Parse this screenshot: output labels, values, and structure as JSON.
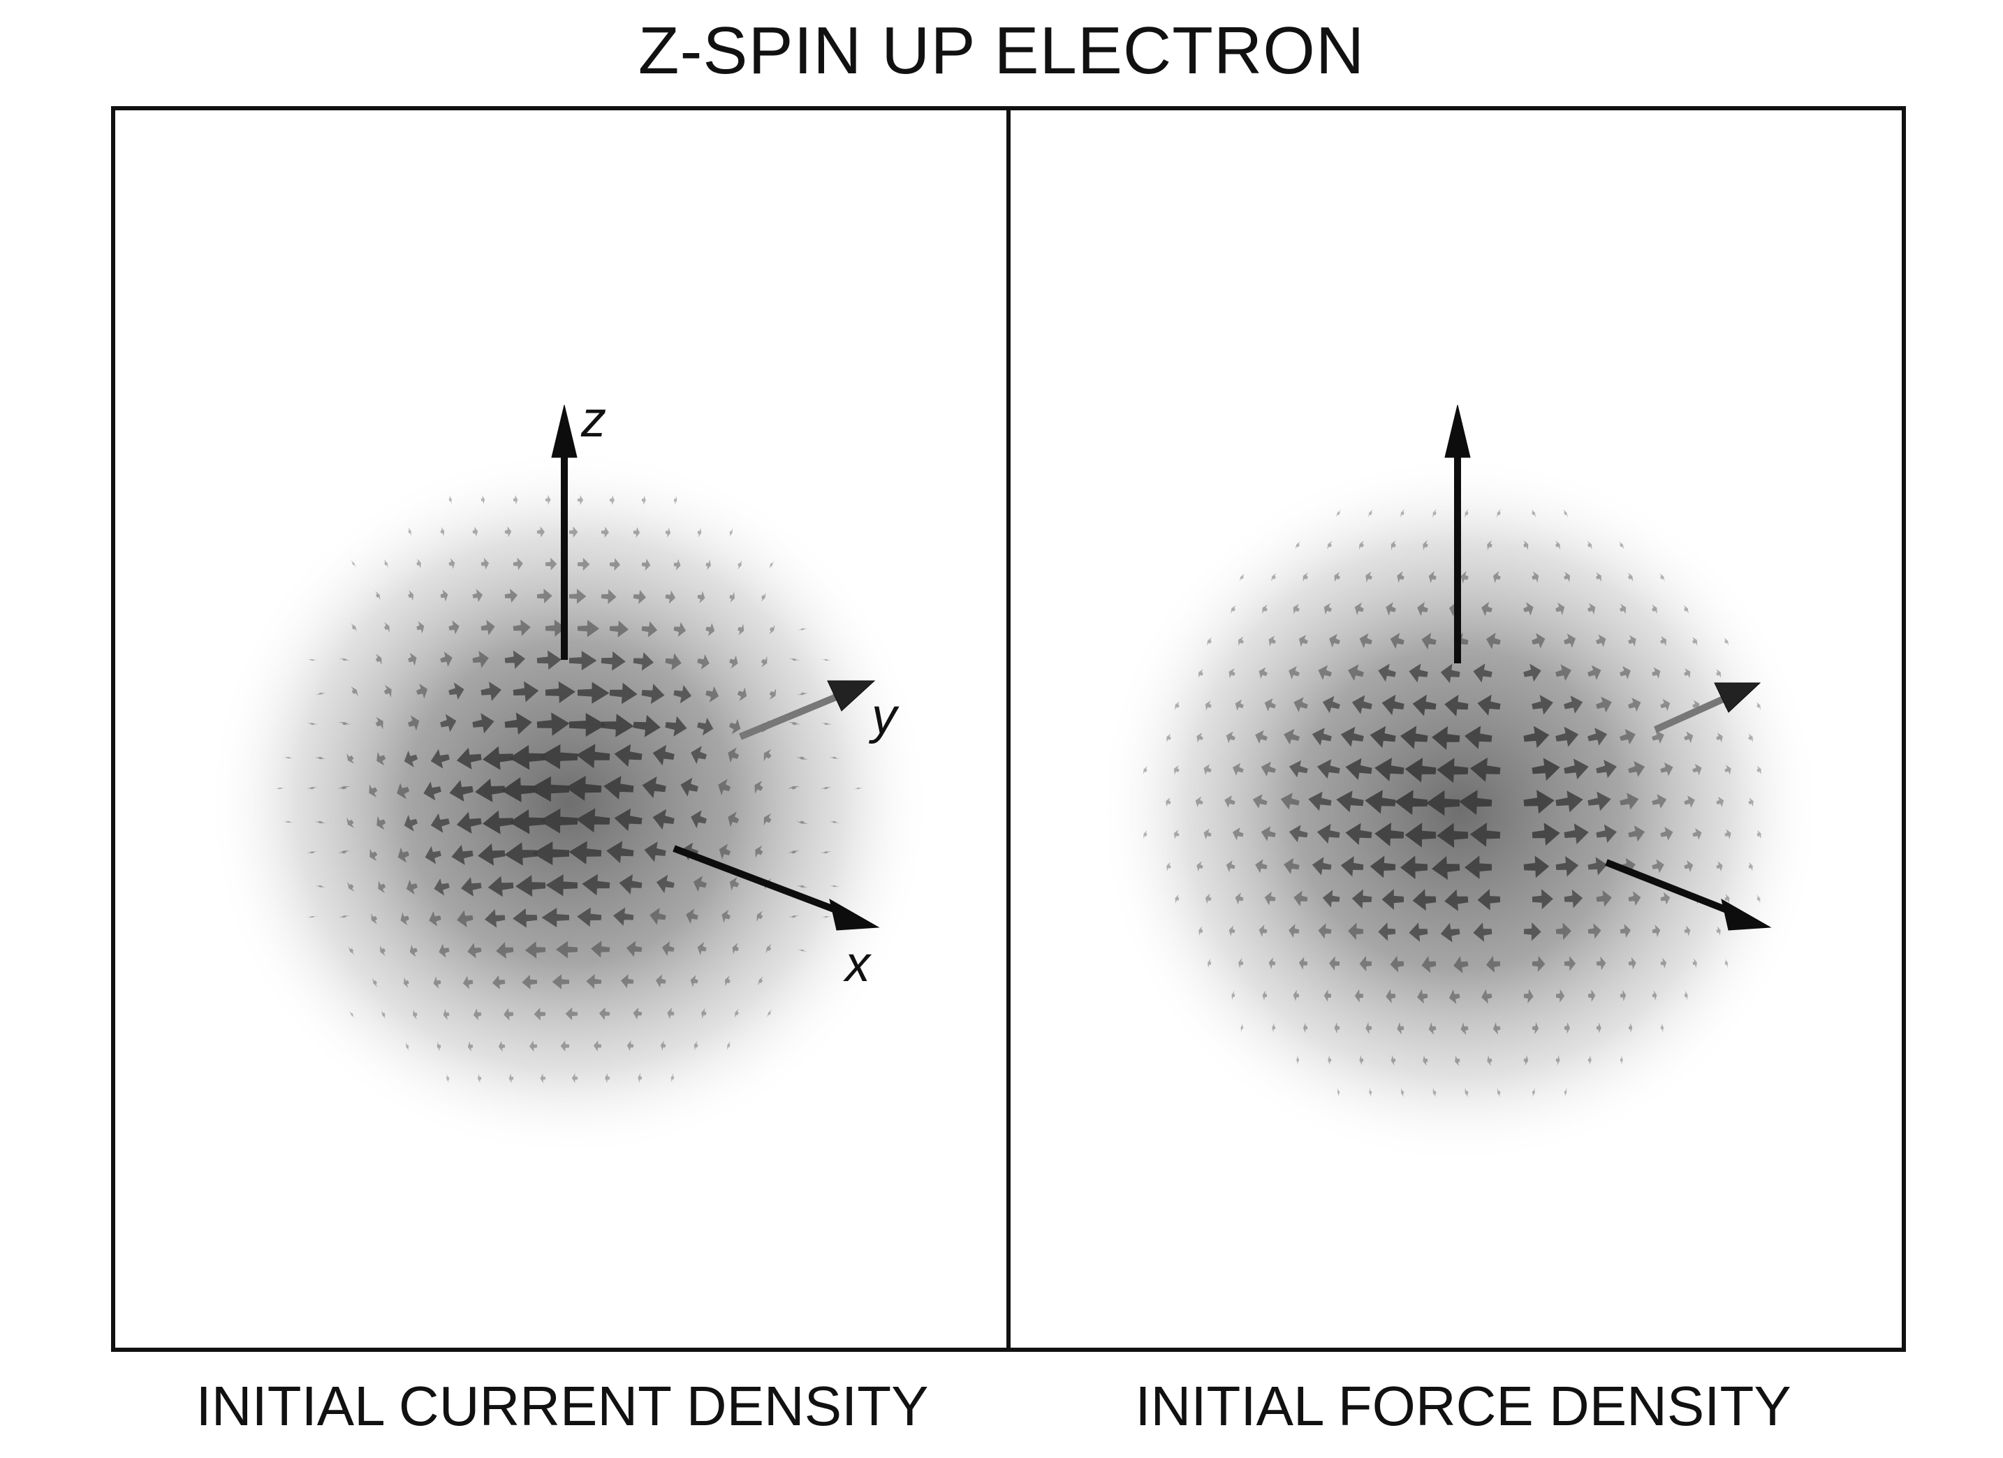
{
  "title": "Z-SPIN UP ELECTRON",
  "panels": [
    {
      "name": "current-density",
      "caption": "INITIAL CURRENT DENSITY",
      "axes": {
        "z": "z",
        "y": "y",
        "x": "x"
      },
      "field": "circulation"
    },
    {
      "name": "force-density",
      "caption": "INITIAL FORCE DENSITY",
      "axes": {
        "z": "",
        "y": "",
        "x": ""
      },
      "field": "force"
    }
  ],
  "colors": {
    "frame": "#111111",
    "arrow": "#4a4a4a",
    "axis": "#0d0d0d",
    "cloud": "#555555"
  }
}
